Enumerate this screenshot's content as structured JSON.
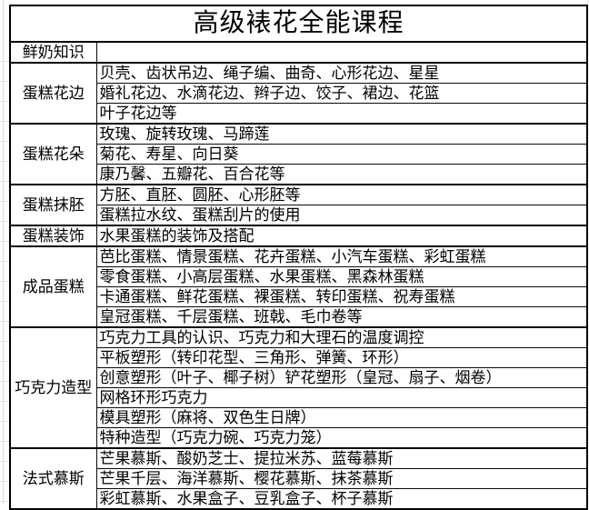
{
  "title": "高级裱花全能课程",
  "table": {
    "groups": [
      {
        "category": "鲜奶知识",
        "rows": [
          ""
        ]
      },
      {
        "category": "蛋糕花边",
        "rows": [
          "贝壳、齿状吊边、绳子编、曲奇、心形花边、星星",
          "婚礼花边、水滴花边、辫子边、饺子、裙边、花篮",
          "叶子花边等"
        ]
      },
      {
        "category": "蛋糕花朵",
        "rows": [
          "玫瑰、旋转玫瑰、马蹄莲",
          "菊花、寿星、向日葵",
          "康乃馨、五瓣花、百合花等"
        ]
      },
      {
        "category": "蛋糕抹胚",
        "rows": [
          "方胚、直胚、圆胚、心形胚等",
          "蛋糕拉水纹、蛋糕刮片的使用"
        ]
      },
      {
        "category": "蛋糕装饰",
        "rows": [
          "水果蛋糕的装饰及搭配"
        ]
      },
      {
        "category": "成品蛋糕",
        "rows": [
          "芭比蛋糕、情景蛋糕、花卉蛋糕、小汽车蛋糕、彩虹蛋糕",
          "零食蛋糕、小高层蛋糕、水果蛋糕、黑森林蛋糕",
          "卡通蛋糕、鲜花蛋糕、裸蛋糕、转印蛋糕、祝寿蛋糕",
          "皇冠蛋糕、千层蛋糕、班戟、毛巾卷等"
        ]
      },
      {
        "category": "巧克力造型",
        "rows": [
          "巧克力工具的认识、巧克力和大理石的温度调控",
          "平板塑形（转印花型、三角形、弹簧、环形）",
          "创意塑形（叶子、椰子树）铲花塑形（皇冠、扇子、烟卷）",
          "网格环形巧克力",
          "模具塑形（麻将、双色生日牌）",
          "特种造型（巧克力碗、巧克力笼）"
        ]
      },
      {
        "category": "法式慕斯",
        "rows": [
          "芒果慕斯、酸奶芝士、提拉米苏、蓝莓慕斯",
          "芒果千层、海洋慕斯、樱花慕斯、抹茶慕斯",
          "彩虹慕斯、水果盒子、豆乳盒子、杯子慕斯"
        ]
      }
    ]
  },
  "colors": {
    "border": "#000000",
    "text": "#000000",
    "background": "#ffffff",
    "faint_gridline": "#dcdcdc"
  }
}
